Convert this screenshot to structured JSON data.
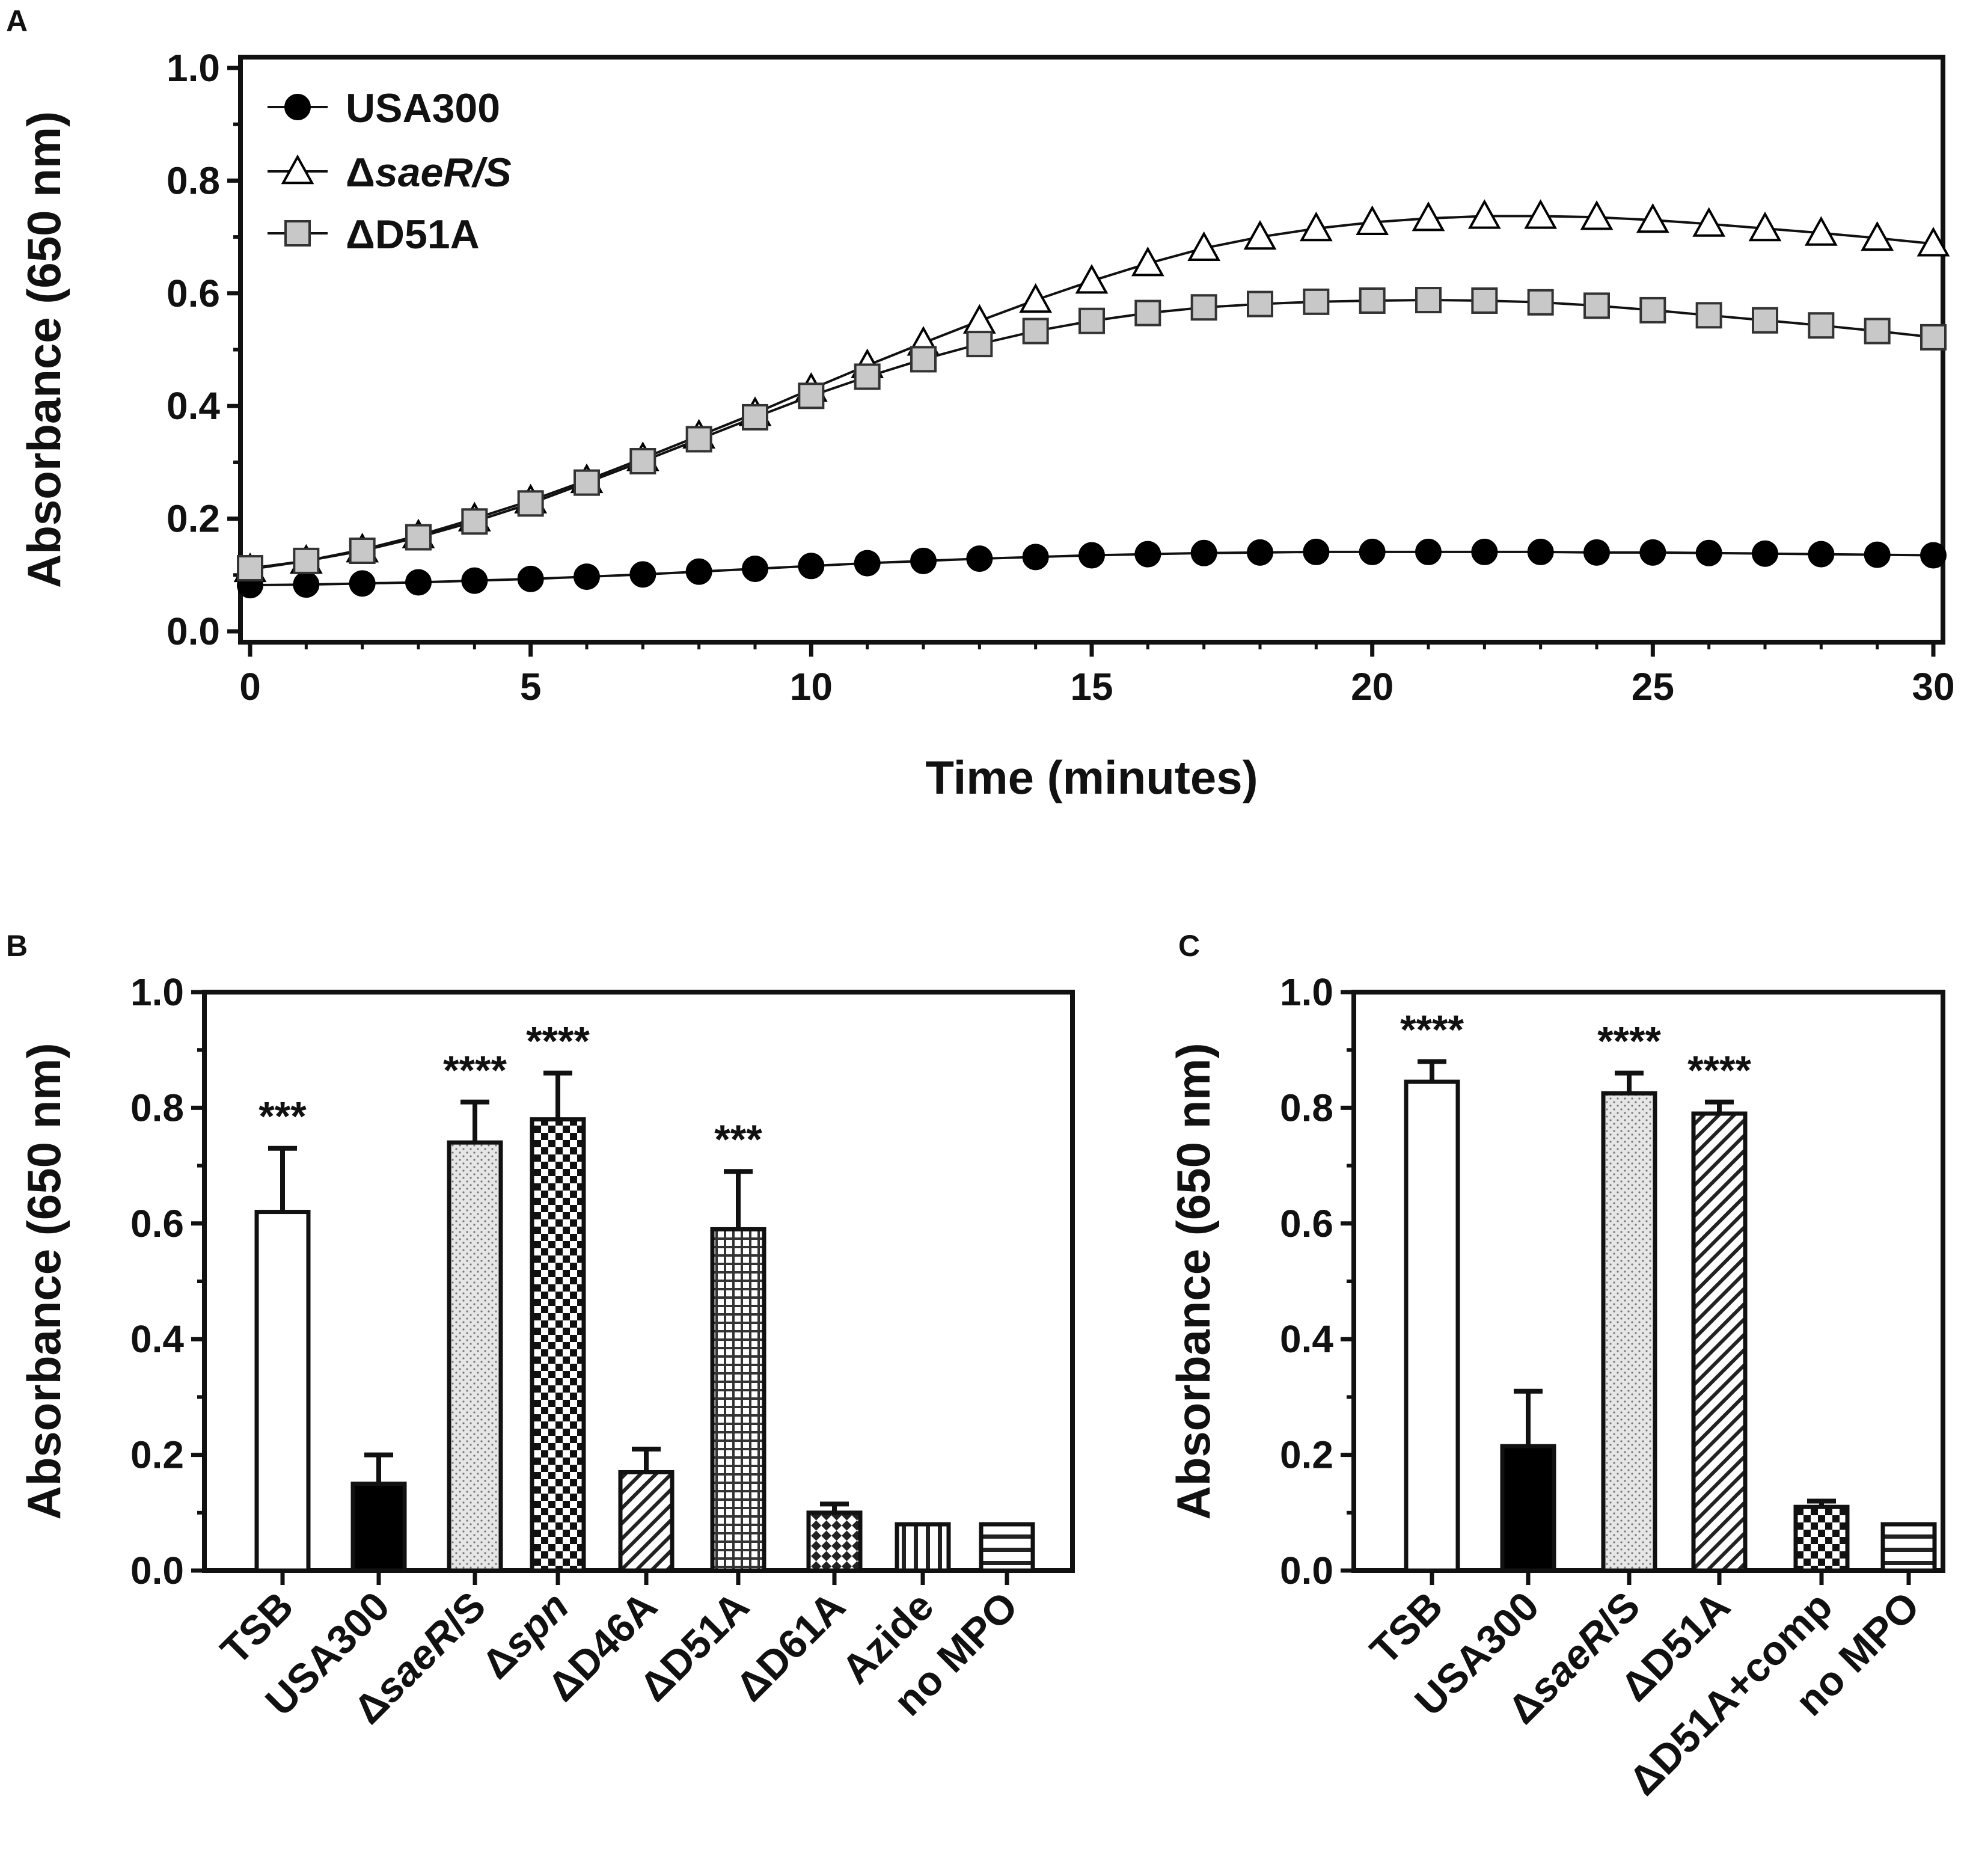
{
  "chart_data": [
    {
      "panel": "A",
      "type": "line",
      "title": "",
      "xlabel": "Time (minutes)",
      "ylabel": "Absorbance (650 nm)",
      "xlim": [
        0,
        30
      ],
      "ylim": [
        0,
        1.0
      ],
      "xticks": [
        "0",
        "5",
        "10",
        "15",
        "20",
        "25",
        "30"
      ],
      "yticks": [
        "0.0",
        "0.2",
        "0.4",
        "0.6",
        "0.8",
        "1.0"
      ],
      "x": [
        0,
        1,
        2,
        3,
        4,
        5,
        6,
        7,
        8,
        9,
        10,
        11,
        12,
        13,
        14,
        15,
        16,
        17,
        18,
        19,
        20,
        21,
        22,
        23,
        24,
        25,
        26,
        27,
        28,
        29,
        30
      ],
      "legend_position": "top-left",
      "series": [
        {
          "name": "USA300",
          "name_parts": [
            {
              "t": "USA300",
              "i": false
            }
          ],
          "marker": "circle",
          "fill": "#000000",
          "values": [
            0.082,
            0.083,
            0.085,
            0.087,
            0.09,
            0.093,
            0.097,
            0.101,
            0.106,
            0.111,
            0.116,
            0.121,
            0.125,
            0.129,
            0.132,
            0.135,
            0.137,
            0.139,
            0.14,
            0.141,
            0.141,
            0.141,
            0.141,
            0.141,
            0.14,
            0.14,
            0.139,
            0.138,
            0.137,
            0.136,
            0.135
          ]
        },
        {
          "name": "ΔsaeR/S",
          "name_parts": [
            {
              "t": "Δ",
              "i": false
            },
            {
              "t": "saeR/S",
              "i": true
            }
          ],
          "marker": "triangle",
          "fill": "#ffffff",
          "values": [
            0.11,
            0.125,
            0.145,
            0.17,
            0.2,
            0.232,
            0.268,
            0.307,
            0.347,
            0.387,
            0.43,
            0.472,
            0.512,
            0.551,
            0.588,
            0.622,
            0.653,
            0.68,
            0.7,
            0.715,
            0.726,
            0.733,
            0.737,
            0.737,
            0.735,
            0.73,
            0.723,
            0.715,
            0.707,
            0.698,
            0.688
          ]
        },
        {
          "name": "ΔD51A",
          "name_parts": [
            {
              "t": "ΔD51A",
              "i": false
            }
          ],
          "marker": "square",
          "fill": "#c8c8c8",
          "values": [
            0.112,
            0.125,
            0.143,
            0.167,
            0.195,
            0.227,
            0.264,
            0.302,
            0.341,
            0.38,
            0.418,
            0.452,
            0.483,
            0.51,
            0.533,
            0.551,
            0.565,
            0.575,
            0.581,
            0.585,
            0.587,
            0.588,
            0.587,
            0.584,
            0.578,
            0.57,
            0.561,
            0.552,
            0.543,
            0.533,
            0.522
          ]
        }
      ]
    },
    {
      "panel": "B",
      "type": "bar",
      "title": "",
      "xlabel": "",
      "ylabel": "Absorbance (650 nm)",
      "ylim": [
        0,
        1.0
      ],
      "yticks": [
        "0.0",
        "0.2",
        "0.4",
        "0.6",
        "0.8",
        "1.0"
      ],
      "categories": [
        "TSB",
        "USA300",
        "ΔsaeR/S",
        "Δspn",
        "ΔD46A",
        "ΔD51A",
        "ΔD61A",
        "Azide",
        "no MPO"
      ],
      "category_parts": [
        [
          {
            "t": "TSB",
            "i": false
          }
        ],
        [
          {
            "t": "USA300",
            "i": false
          }
        ],
        [
          {
            "t": "Δ",
            "i": false
          },
          {
            "t": "saeR",
            "i": true
          },
          {
            "t": "/S",
            "i": false
          }
        ],
        [
          {
            "t": "Δ",
            "i": false
          },
          {
            "t": "spn",
            "i": true
          }
        ],
        [
          {
            "t": "ΔD46A",
            "i": false
          }
        ],
        [
          {
            "t": "ΔD51A",
            "i": false
          }
        ],
        [
          {
            "t": "ΔD61A",
            "i": false
          }
        ],
        [
          {
            "t": "Azide",
            "i": false
          }
        ],
        [
          {
            "t": "no MPO",
            "i": false
          }
        ]
      ],
      "values": [
        0.62,
        0.15,
        0.74,
        0.78,
        0.17,
        0.59,
        0.1,
        0.08,
        0.08
      ],
      "errors": [
        0.11,
        0.05,
        0.07,
        0.08,
        0.04,
        0.1,
        0.015,
        0.0,
        0.0
      ],
      "patterns": [
        "white",
        "black",
        "dots",
        "checker",
        "diag",
        "grid",
        "diamond",
        "vlines",
        "hlines"
      ],
      "annotations": [
        "***",
        "",
        "****",
        "****",
        "",
        "***",
        "",
        "",
        ""
      ]
    },
    {
      "panel": "C",
      "type": "bar",
      "title": "",
      "xlabel": "",
      "ylabel": "Absorbance (650 nm)",
      "ylim": [
        0,
        1.0
      ],
      "yticks": [
        "0.0",
        "0.2",
        "0.4",
        "0.6",
        "0.8",
        "1.0"
      ],
      "categories": [
        "TSB",
        "USA300",
        "ΔsaeR/S",
        "ΔD51A",
        "ΔD51A+comp",
        "no MPO"
      ],
      "category_parts": [
        [
          {
            "t": "TSB",
            "i": false
          }
        ],
        [
          {
            "t": "USA300",
            "i": false
          }
        ],
        [
          {
            "t": "Δ",
            "i": false
          },
          {
            "t": "saeR",
            "i": true
          },
          {
            "t": "/S",
            "i": false
          }
        ],
        [
          {
            "t": "ΔD51A",
            "i": false
          }
        ],
        [
          {
            "t": "ΔD51A+comp",
            "i": false
          }
        ],
        [
          {
            "t": "no MPO",
            "i": false
          }
        ]
      ],
      "values": [
        0.845,
        0.215,
        0.825,
        0.79,
        0.11,
        0.08
      ],
      "errors": [
        0.035,
        0.095,
        0.035,
        0.02,
        0.01,
        0.0
      ],
      "patterns": [
        "white",
        "black",
        "dots",
        "diag",
        "checker",
        "hlines"
      ],
      "annotations": [
        "****",
        "",
        "****",
        "****",
        "",
        ""
      ]
    }
  ]
}
